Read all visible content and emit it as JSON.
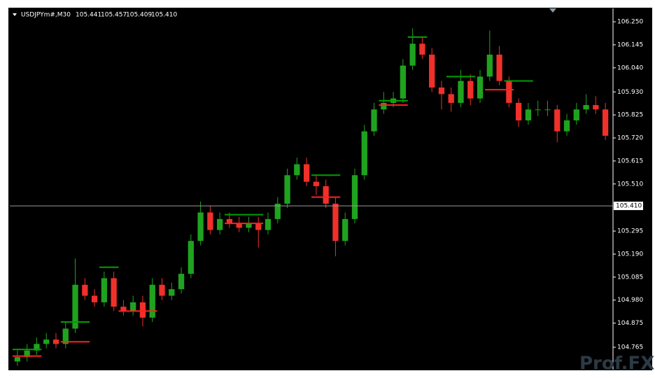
{
  "chart_data": {
    "type": "candlestick",
    "symbol": "USDJPYm#,M30",
    "ohlc": [
      105.441,
      105.457,
      105.409,
      {
        "value": 105.41,
        "label": "105.410"
      }
    ],
    "watermark": "Prof.FX",
    "up_color": "#1fa31f",
    "down_color": "#f0302a",
    "ylim": [
      104.663,
      106.311
    ],
    "yticks": [
      {
        "value": 106.25,
        "label": "106.250"
      },
      106.145,
      {
        "value": 106.04,
        "label": "106.040"
      },
      {
        "value": 105.93,
        "label": "105.930"
      },
      105.825,
      {
        "value": 105.72,
        "label": "105.720"
      },
      105.615,
      {
        "value": 105.51,
        "label": "105.510"
      },
      105.295,
      {
        "value": 105.19,
        "label": "105.190"
      },
      105.085,
      {
        "value": 104.98,
        "label": "104.980"
      },
      104.875,
      104.765
    ],
    "open": [
      104.7,
      104.72,
      104.75,
      104.78,
      104.8,
      104.78,
      104.85,
      105.05,
      105.0,
      104.97,
      105.08,
      104.95,
      104.93,
      104.97,
      104.9,
      105.05,
      105.0,
      105.03,
      105.1,
      105.25,
      105.38,
      105.3,
      105.35,
      105.33,
      105.31,
      105.33,
      105.3,
      105.35,
      105.42,
      105.55,
      105.6,
      105.52,
      105.5,
      105.42,
      105.25,
      105.35,
      105.55,
      105.75,
      105.85,
      105.88,
      105.9,
      106.05,
      106.15,
      106.1,
      105.95,
      105.92,
      105.88,
      105.98,
      105.9,
      106.0,
      106.1,
      105.98,
      105.88,
      105.8,
      105.85,
      105.85,
      105.85,
      105.75,
      105.8,
      105.85,
      105.87,
      105.85
    ],
    "high": [
      104.75,
      104.78,
      104.81,
      104.83,
      104.83,
      104.88,
      105.17,
      105.08,
      105.03,
      105.11,
      105.11,
      104.98,
      105.0,
      105.0,
      105.08,
      105.08,
      105.06,
      105.13,
      105.28,
      105.43,
      105.41,
      105.38,
      105.38,
      105.36,
      105.36,
      105.36,
      105.38,
      105.45,
      105.58,
      105.63,
      105.63,
      105.55,
      105.53,
      105.45,
      105.38,
      105.58,
      105.78,
      105.88,
      105.93,
      105.93,
      106.08,
      106.22,
      106.18,
      106.13,
      105.98,
      105.95,
      106.03,
      106.01,
      106.03,
      106.21,
      106.14,
      106.0,
      105.9,
      105.88,
      105.89,
      105.89,
      105.87,
      105.83,
      105.88,
      105.92,
      105.91,
      105.88
    ],
    "low": [
      104.68,
      104.7,
      104.73,
      104.76,
      104.76,
      104.76,
      104.83,
      104.98,
      104.95,
      104.95,
      104.93,
      104.91,
      104.91,
      104.86,
      104.88,
      104.98,
      104.98,
      105.01,
      105.08,
      105.23,
      105.28,
      105.28,
      105.31,
      105.29,
      105.29,
      105.22,
      105.28,
      105.33,
      105.4,
      105.53,
      105.5,
      105.46,
      105.4,
      105.18,
      105.23,
      105.33,
      105.53,
      105.73,
      105.83,
      105.86,
      105.88,
      106.03,
      106.08,
      105.93,
      105.85,
      105.84,
      105.86,
      105.87,
      105.88,
      105.98,
      105.96,
      105.86,
      105.77,
      105.78,
      105.82,
      105.82,
      105.7,
      105.73,
      105.78,
      105.83,
      105.83,
      105.71
    ],
    "close": [
      104.72,
      104.75,
      104.78,
      104.8,
      104.78,
      104.85,
      105.05,
      105.0,
      104.97,
      105.08,
      104.95,
      104.93,
      104.97,
      104.9,
      105.05,
      105.0,
      105.03,
      105.1,
      105.25,
      105.38,
      105.3,
      105.35,
      105.33,
      105.31,
      105.33,
      105.3,
      105.35,
      105.42,
      105.55,
      105.6,
      105.52,
      105.5,
      105.42,
      105.25,
      105.35,
      105.55,
      105.75,
      105.85,
      105.88,
      105.9,
      106.05,
      106.15,
      106.1,
      105.95,
      105.92,
      105.88,
      105.98,
      105.9,
      106.0,
      106.1,
      105.98,
      105.88,
      105.8,
      105.85,
      105.85,
      105.85,
      105.75,
      105.8,
      105.85,
      105.87,
      105.85,
      105.73
    ],
    "levels": [
      {
        "color": "#00a000",
        "value": 104.755,
        "start": 0,
        "end": 2
      },
      {
        "color": "#ff2020",
        "value": 104.725,
        "start": 0,
        "end": 2
      },
      {
        "color": "#00a000",
        "value": 104.88,
        "start": 5,
        "end": 7
      },
      {
        "color": "#ff2020",
        "value": 104.79,
        "start": 5,
        "end": 7
      },
      {
        "color": "#00a000",
        "value": 105.13,
        "start": 9,
        "end": 10
      },
      {
        "color": "#ff2020",
        "value": 104.93,
        "start": 11,
        "end": 14
      },
      {
        "color": "#00a000",
        "value": 105.37,
        "start": 22,
        "end": 25
      },
      {
        "color": "#ff2020",
        "value": 105.33,
        "start": 22,
        "end": 25
      },
      {
        "color": "#00a000",
        "value": 105.55,
        "start": 31,
        "end": 33
      },
      {
        "color": "#ff2020",
        "value": 105.45,
        "start": 31,
        "end": 33
      },
      {
        "color": "#00a000",
        "value": 105.89,
        "start": 38,
        "end": 40
      },
      {
        "color": "#ff2020",
        "value": 105.87,
        "start": 38,
        "end": 40
      },
      {
        "color": "#00a000",
        "value": 106.18,
        "start": 41,
        "end": 42
      },
      {
        "color": "#00a000",
        "value": 106.0,
        "start": 45,
        "end": 47
      },
      {
        "color": "#ff2020",
        "value": 105.94,
        "start": 49,
        "end": 51
      },
      {
        "color": "#00a000",
        "value": 105.98,
        "start": 51,
        "end": 53
      }
    ]
  }
}
